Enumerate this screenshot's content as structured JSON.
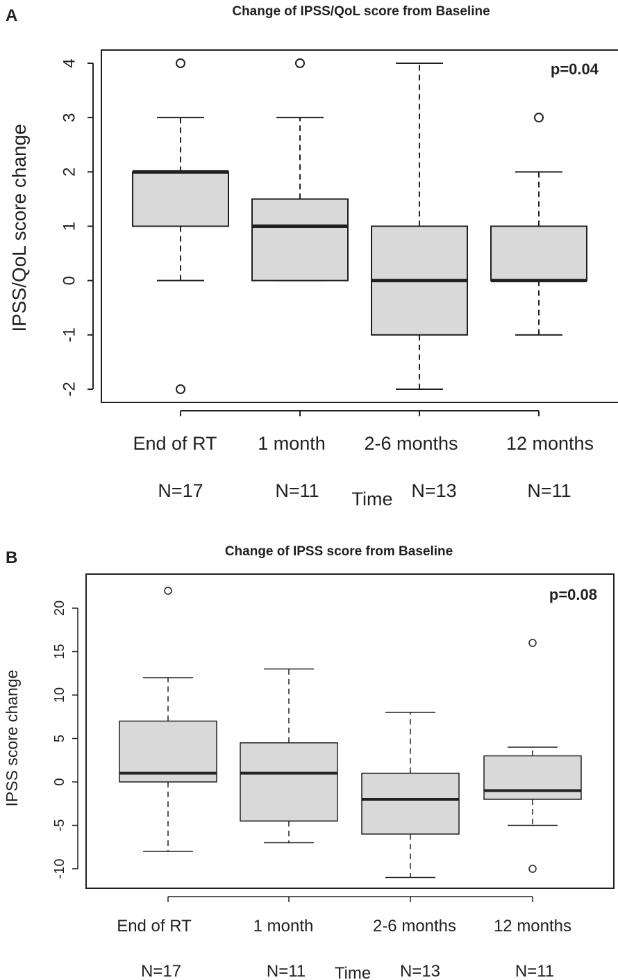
{
  "chart_data": [
    {
      "type": "boxplot",
      "panel_label": "A",
      "title": "Change of IPSS/QoL score from Baseline",
      "xlabel": "Time",
      "ylabel": "IPSS/QoL score change",
      "annotation": "p=0.04",
      "ylim": [
        -2.2,
        4.2
      ],
      "yticks": [
        -2,
        -1,
        0,
        1,
        2,
        3,
        4
      ],
      "categories": [
        "End of RT",
        "1 month",
        "2-6 months",
        "12 months"
      ],
      "n_labels": [
        "N=17",
        "N=11",
        "N=13",
        "N=11"
      ],
      "boxes": [
        {
          "whisker_low": 0,
          "q1": 1,
          "median": 2,
          "q3": 2,
          "whisker_high": 3,
          "outliers": [
            4,
            -2
          ]
        },
        {
          "whisker_low": 0,
          "q1": 0,
          "median": 1,
          "q3": 1.5,
          "whisker_high": 3,
          "outliers": [
            4
          ]
        },
        {
          "whisker_low": -2,
          "q1": -1,
          "median": 0,
          "q3": 1,
          "whisker_high": 4,
          "outliers": []
        },
        {
          "whisker_low": -1,
          "q1": 0,
          "median": 0,
          "q3": 1,
          "whisker_high": 2,
          "outliers": [
            3
          ]
        }
      ]
    },
    {
      "type": "boxplot",
      "panel_label": "B",
      "title": "Change of IPSS score from Baseline",
      "xlabel": "Time",
      "ylabel": "IPSS score change",
      "annotation": "p=0.08",
      "ylim": [
        -12,
        23.5
      ],
      "yticks": [
        -10,
        -5,
        0,
        5,
        10,
        15,
        20
      ],
      "categories": [
        "End of RT",
        "1 month",
        "2-6 months",
        "12 months"
      ],
      "n_labels": [
        "N=17",
        "N=11",
        "N=13",
        "N=11"
      ],
      "boxes": [
        {
          "whisker_low": -8,
          "q1": 0,
          "median": 1,
          "q3": 7,
          "whisker_high": 12,
          "outliers": [
            22
          ]
        },
        {
          "whisker_low": -7,
          "q1": -4.5,
          "median": 1,
          "q3": 4.5,
          "whisker_high": 13,
          "outliers": []
        },
        {
          "whisker_low": -11,
          "q1": -6,
          "median": -2,
          "q3": 1,
          "whisker_high": 8,
          "outliers": []
        },
        {
          "whisker_low": -5,
          "q1": -2,
          "median": -1,
          "q3": 3,
          "whisker_high": 4,
          "outliers": [
            16,
            -10
          ]
        }
      ]
    }
  ]
}
